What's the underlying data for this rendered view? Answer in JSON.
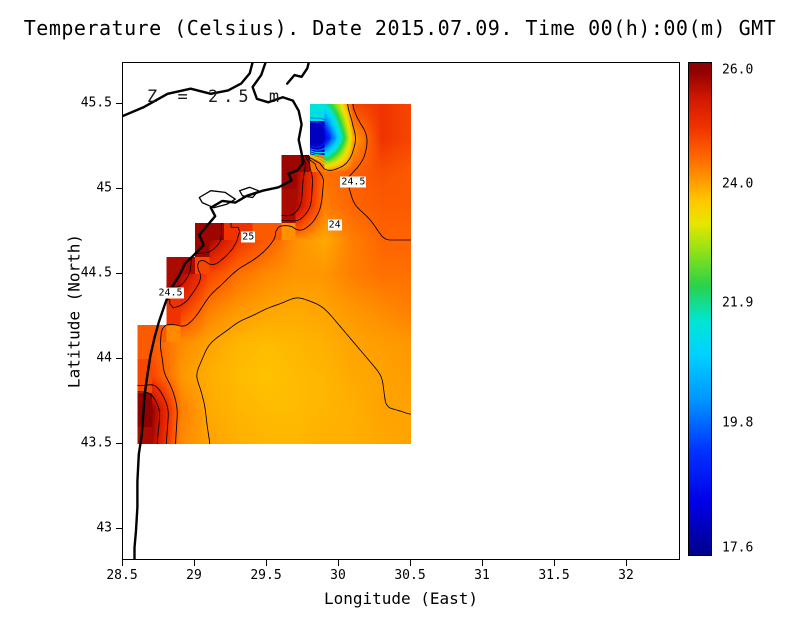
{
  "title": "Temperature (Celsius). Date 2015.07.09. Time 00(h):00(m) GMT",
  "annotation": "Z = 2.5 m",
  "axes": {
    "x_label": "Longitude (East)",
    "y_label": "Latitude (North)",
    "x_ticks": [
      {
        "label": "28.5",
        "value": 28.5
      },
      {
        "label": "29",
        "value": 29
      },
      {
        "label": "29.5",
        "value": 29.5
      },
      {
        "label": "30",
        "value": 30
      },
      {
        "label": "30.5",
        "value": 30.5
      },
      {
        "label": "31",
        "value": 31
      },
      {
        "label": "31.5",
        "value": 31.5
      },
      {
        "label": "32",
        "value": 32
      }
    ],
    "y_ticks": [
      {
        "label": "45.5",
        "value": 45.5
      },
      {
        "label": "45",
        "value": 45
      },
      {
        "label": "44.5",
        "value": 44.5
      },
      {
        "label": "44",
        "value": 44
      },
      {
        "label": "43.5",
        "value": 43.5
      },
      {
        "label": "43",
        "value": 43
      }
    ]
  },
  "colorbar": {
    "ticks": [
      {
        "label": "26.0",
        "value": 26.0
      },
      {
        "label": "24.0",
        "value": 24.0
      },
      {
        "label": "21.9",
        "value": 21.9
      },
      {
        "label": "19.8",
        "value": 19.8
      },
      {
        "label": "17.6",
        "value": 17.6
      }
    ]
  },
  "chart_data": {
    "type": "heatmap",
    "title": "Temperature (Celsius). Date 2015.07.09. Time 00(h):00(m) GMT",
    "units": "Celsius",
    "depth_label": "Z = 2.5 m",
    "xlabel": "Longitude (East)",
    "ylabel": "Latitude (North)",
    "xlim": [
      28.5,
      32.37
    ],
    "ylim": [
      42.81,
      45.74
    ],
    "value_range": [
      17.6,
      26.0
    ],
    "grid": {
      "lon_start": 28.5,
      "lon_step": 0.2,
      "lat_start": 45.5,
      "lat_step": -0.2,
      "values": [
        [
          null,
          null,
          null,
          null,
          null,
          null,
          null,
          21.5,
          24.8,
          25.0,
          24.8
        ],
        [
          null,
          null,
          null,
          null,
          null,
          null,
          null,
          18.0,
          24.0,
          25.0,
          24.8
        ],
        [
          null,
          null,
          null,
          null,
          null,
          null,
          25.9,
          24.4,
          24.55,
          24.7,
          24.6
        ],
        [
          null,
          null,
          null,
          null,
          null,
          null,
          25.8,
          24.3,
          24.5,
          24.6,
          24.6
        ],
        [
          null,
          null,
          null,
          25.9,
          25.0,
          24.6,
          24.15,
          23.95,
          24.3,
          24.5,
          24.5
        ],
        [
          null,
          null,
          25.8,
          24.8,
          24.4,
          24.2,
          24.1,
          24.1,
          24.3,
          24.4,
          24.4
        ],
        [
          null,
          null,
          25.0,
          24.3,
          24.1,
          24.0,
          23.95,
          24.0,
          24.1,
          24.2,
          24.3
        ],
        [
          null,
          24.6,
          24.2,
          24.0,
          23.85,
          23.8,
          23.85,
          23.9,
          24.0,
          24.05,
          24.1
        ],
        [
          null,
          24.8,
          24.1,
          23.9,
          23.8,
          23.75,
          23.8,
          23.85,
          23.95,
          24.0,
          24.05
        ],
        [
          null,
          26.0,
          24.3,
          23.95,
          23.85,
          23.8,
          23.8,
          23.85,
          23.9,
          24.0,
          24.0
        ],
        [
          null,
          25.8,
          24.2,
          24.0,
          23.9,
          23.85,
          23.85,
          23.9,
          23.9,
          23.95,
          24.0
        ]
      ]
    },
    "contour_levels_black": [
      24,
      24.5,
      25,
      25.5
    ],
    "contour_levels_colored": [
      18,
      19,
      20,
      21,
      22,
      23,
      23.5
    ],
    "contour_labels": [
      {
        "text": "24.5",
        "lon": 30.1,
        "lat": 45.04
      },
      {
        "text": "24",
        "lon": 29.97,
        "lat": 44.79
      },
      {
        "text": "25",
        "lon": 29.37,
        "lat": 44.72
      },
      {
        "text": "24.5",
        "lon": 28.83,
        "lat": 44.39
      }
    ],
    "colormap": [
      {
        "v": 17.5,
        "c": "#00008f"
      },
      {
        "v": 18.4,
        "c": "#0000e8"
      },
      {
        "v": 19.3,
        "c": "#0032ff"
      },
      {
        "v": 20.2,
        "c": "#0096ff"
      },
      {
        "v": 21.0,
        "c": "#00d2ff"
      },
      {
        "v": 21.6,
        "c": "#00e6d2"
      },
      {
        "v": 22.2,
        "c": "#28d24b"
      },
      {
        "v": 22.8,
        "c": "#8ce119"
      },
      {
        "v": 23.3,
        "c": "#e6e600"
      },
      {
        "v": 23.7,
        "c": "#ffc800"
      },
      {
        "v": 24.1,
        "c": "#ff9600"
      },
      {
        "v": 24.5,
        "c": "#ff6400"
      },
      {
        "v": 25.0,
        "c": "#f03200"
      },
      {
        "v": 25.5,
        "c": "#d21900"
      },
      {
        "v": 26.0,
        "c": "#8f0000"
      }
    ],
    "coastline": [
      [
        [
          28.5,
          45.43
        ],
        [
          28.64,
          45.48
        ],
        [
          28.81,
          45.56
        ],
        [
          28.97,
          45.59
        ],
        [
          29.11,
          45.56
        ],
        [
          29.23,
          45.58
        ],
        [
          29.32,
          45.62
        ],
        [
          29.38,
          45.68
        ],
        [
          29.4,
          45.745
        ]
      ],
      [
        [
          29.49,
          45.745
        ],
        [
          29.46,
          45.67
        ],
        [
          29.4,
          45.6
        ],
        [
          29.43,
          45.53
        ],
        [
          29.51,
          45.51
        ],
        [
          29.61,
          45.54
        ],
        [
          29.68,
          45.52
        ],
        [
          29.72,
          45.46
        ],
        [
          29.74,
          45.38
        ],
        [
          29.72,
          45.29
        ],
        [
          29.74,
          45.21
        ],
        [
          29.75,
          45.15
        ],
        [
          29.71,
          45.11
        ],
        [
          29.65,
          45.09
        ],
        [
          29.67,
          45.05
        ],
        [
          29.58,
          45.01
        ],
        [
          29.47,
          44.99
        ],
        [
          29.36,
          44.96
        ],
        [
          29.28,
          44.92
        ],
        [
          29.19,
          44.93
        ],
        [
          29.11,
          44.89
        ],
        [
          29.14,
          44.84
        ],
        [
          29.08,
          44.78
        ],
        [
          29.03,
          44.73
        ],
        [
          29.06,
          44.67
        ],
        [
          28.99,
          44.61
        ],
        [
          28.93,
          44.56
        ],
        [
          28.89,
          44.49
        ],
        [
          28.83,
          44.41
        ],
        [
          28.79,
          44.32
        ],
        [
          28.75,
          44.22
        ],
        [
          28.72,
          44.13
        ],
        [
          28.69,
          44.02
        ],
        [
          28.67,
          43.91
        ],
        [
          28.65,
          43.79
        ],
        [
          28.64,
          43.67
        ],
        [
          28.63,
          43.55
        ],
        [
          28.61,
          43.44
        ],
        [
          28.6,
          43.28
        ],
        [
          28.6,
          43.13
        ],
        [
          28.59,
          42.99
        ],
        [
          28.58,
          42.89
        ],
        [
          28.58,
          42.81
        ]
      ],
      [
        [
          29.64,
          45.62
        ],
        [
          29.69,
          45.67
        ],
        [
          29.74,
          45.66
        ],
        [
          29.78,
          45.71
        ],
        [
          29.79,
          45.745
        ]
      ]
    ],
    "lakes": [
      [
        [
          29.03,
          44.95
        ],
        [
          29.11,
          44.99
        ],
        [
          29.21,
          44.98
        ],
        [
          29.28,
          44.94
        ],
        [
          29.22,
          44.91
        ],
        [
          29.13,
          44.89
        ],
        [
          29.05,
          44.92
        ]
      ],
      [
        [
          29.31,
          44.99
        ],
        [
          29.38,
          45.01
        ],
        [
          29.44,
          44.99
        ],
        [
          29.4,
          44.95
        ],
        [
          29.33,
          44.96
        ]
      ]
    ]
  }
}
